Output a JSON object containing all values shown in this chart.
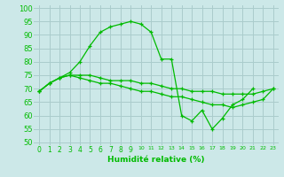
{
  "xlabel": "Humidité relative (%)",
  "bg_color": "#cce8e8",
  "grid_color": "#aacccc",
  "line_color": "#00bb00",
  "xlim": [
    -0.5,
    23.5
  ],
  "ylim": [
    49,
    101
  ],
  "yticks": [
    50,
    55,
    60,
    65,
    70,
    75,
    80,
    85,
    90,
    95,
    100
  ],
  "xticks": [
    0,
    1,
    2,
    3,
    4,
    5,
    6,
    7,
    8,
    9,
    10,
    11,
    12,
    13,
    14,
    15,
    16,
    17,
    18,
    19,
    20,
    21,
    22,
    23
  ],
  "line1_x": [
    0,
    1,
    2,
    3,
    4,
    5,
    6,
    7,
    8,
    9,
    10,
    11,
    12,
    13,
    14,
    15,
    16,
    17,
    18,
    19,
    20,
    21
  ],
  "line1_y": [
    69,
    72,
    74,
    76,
    80,
    86,
    91,
    93,
    94,
    95,
    94,
    91,
    81,
    81,
    60,
    58,
    62,
    55,
    59,
    64,
    66,
    70
  ],
  "line2_x": [
    0,
    1,
    2,
    3,
    4,
    5,
    6,
    7,
    8,
    9,
    10,
    11,
    12,
    13,
    14,
    15,
    16,
    17,
    18,
    19,
    20,
    21,
    22,
    23
  ],
  "line2_y": [
    69,
    72,
    74,
    75,
    75,
    75,
    74,
    73,
    73,
    73,
    72,
    72,
    71,
    70,
    70,
    69,
    69,
    69,
    68,
    68,
    68,
    68,
    69,
    70
  ],
  "line3_x": [
    0,
    1,
    2,
    3,
    4,
    5,
    6,
    7,
    8,
    9,
    10,
    11,
    12,
    13,
    14,
    15,
    16,
    17,
    18,
    19,
    20,
    21,
    22,
    23
  ],
  "line3_y": [
    69,
    72,
    74,
    75,
    74,
    73,
    72,
    72,
    71,
    70,
    69,
    69,
    68,
    67,
    67,
    66,
    65,
    64,
    64,
    63,
    64,
    65,
    66,
    70
  ]
}
